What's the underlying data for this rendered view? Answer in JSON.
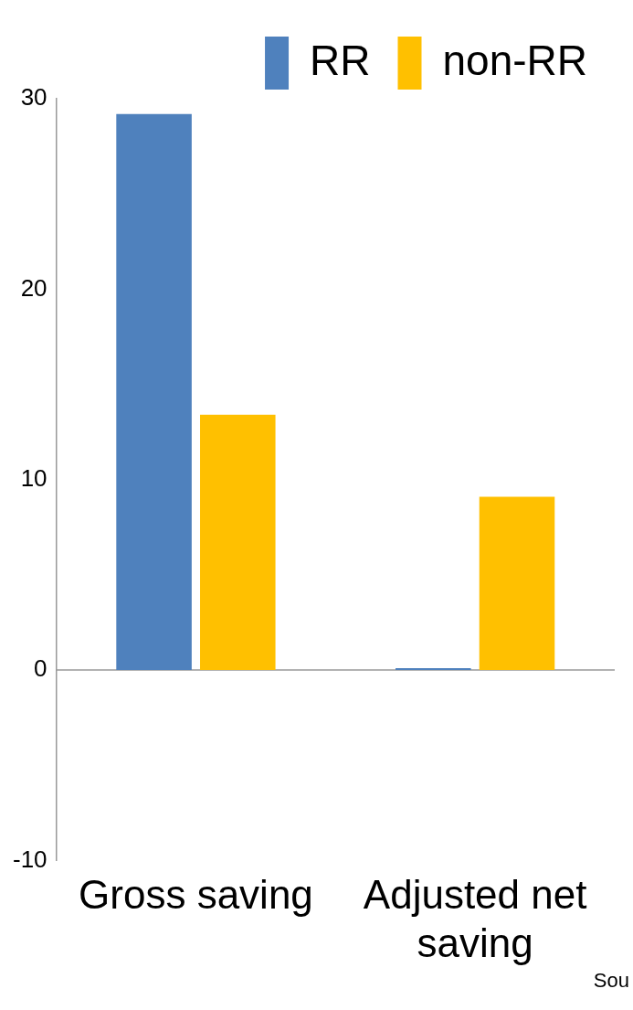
{
  "chart_data": {
    "type": "bar",
    "categories": [
      "Gross saving",
      "Adjusted net saving"
    ],
    "series": [
      {
        "name": "RR",
        "color": "#4f81bd",
        "values": [
          29.2,
          0.1
        ]
      },
      {
        "name": "non-RR",
        "color": "#ffc000",
        "values": [
          13.4,
          9.1
        ]
      }
    ],
    "ref_lines": [
      {
        "axis": "y",
        "value": 0,
        "color": "#999999"
      }
    ],
    "ylim": [
      -10,
      30
    ],
    "yticks": [
      -10,
      0,
      10,
      20,
      30
    ],
    "grid": false,
    "legend": "top right",
    "annotations": [
      "Sou"
    ]
  }
}
